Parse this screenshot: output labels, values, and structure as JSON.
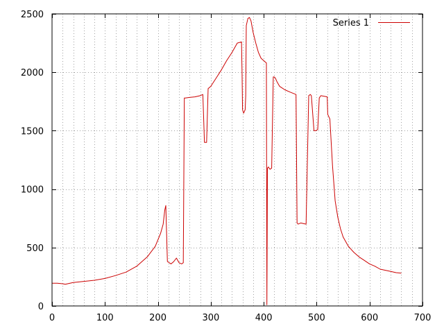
{
  "chart_data": {
    "type": "line",
    "title": "",
    "xlabel": "",
    "ylabel": "",
    "xlim": [
      0,
      700
    ],
    "ylim": [
      0,
      2500
    ],
    "x_ticks": [
      "0",
      "100",
      "200",
      "300",
      "400",
      "500",
      "600",
      "700"
    ],
    "y_ticks": [
      "0",
      "500",
      "1000",
      "1500",
      "2000",
      "2500"
    ],
    "x_grid_step": 20,
    "grid": true,
    "legend_position": "top-right",
    "colors": {
      "series": "#cc0000",
      "grid": "#a0a0a0",
      "axes": "#000000"
    },
    "series": [
      {
        "name": "Series 1",
        "x": [
          0,
          10,
          20,
          25,
          40,
          60,
          80,
          100,
          120,
          140,
          160,
          180,
          195,
          205,
          210,
          213,
          215,
          218,
          225,
          230,
          235,
          240,
          245,
          248,
          250,
          252,
          260,
          270,
          280,
          285,
          288,
          292,
          295,
          300,
          310,
          320,
          330,
          340,
          350,
          358,
          359,
          360,
          362,
          365,
          366,
          367,
          370,
          373,
          376,
          380,
          385,
          390,
          395,
          400,
          405,
          406,
          407,
          409,
          410,
          412,
          415,
          418,
          420,
          422,
          425,
          430,
          440,
          450,
          461,
          463,
          465,
          470,
          480,
          485,
          488,
          490,
          495,
          498,
          502,
          505,
          508,
          520,
          521,
          525,
          530,
          535,
          540,
          545,
          550,
          560,
          570,
          580,
          590,
          600,
          610,
          620,
          630,
          640,
          650,
          660
        ],
        "values": [
          195,
          195,
          190,
          185,
          200,
          210,
          220,
          235,
          260,
          290,
          340,
          420,
          510,
          620,
          700,
          820,
          860,
          380,
          360,
          380,
          410,
          370,
          360,
          370,
          1780,
          1780,
          1785,
          1790,
          1800,
          1810,
          1400,
          1400,
          1860,
          1880,
          1950,
          2020,
          2100,
          2170,
          2250,
          2260,
          2000,
          1680,
          1650,
          1680,
          1800,
          2400,
          2460,
          2470,
          2440,
          2340,
          2250,
          2170,
          2120,
          2100,
          2080,
          10,
          1180,
          1190,
          1180,
          1170,
          1180,
          1960,
          1960,
          1950,
          1920,
          1880,
          1850,
          1830,
          1810,
          710,
          700,
          710,
          700,
          1800,
          1810,
          1800,
          1500,
          1500,
          1510,
          1780,
          1800,
          1790,
          1640,
          1600,
          1200,
          900,
          760,
          660,
          590,
          510,
          460,
          420,
          390,
          360,
          340,
          315,
          305,
          295,
          285,
          280
        ]
      }
    ]
  }
}
